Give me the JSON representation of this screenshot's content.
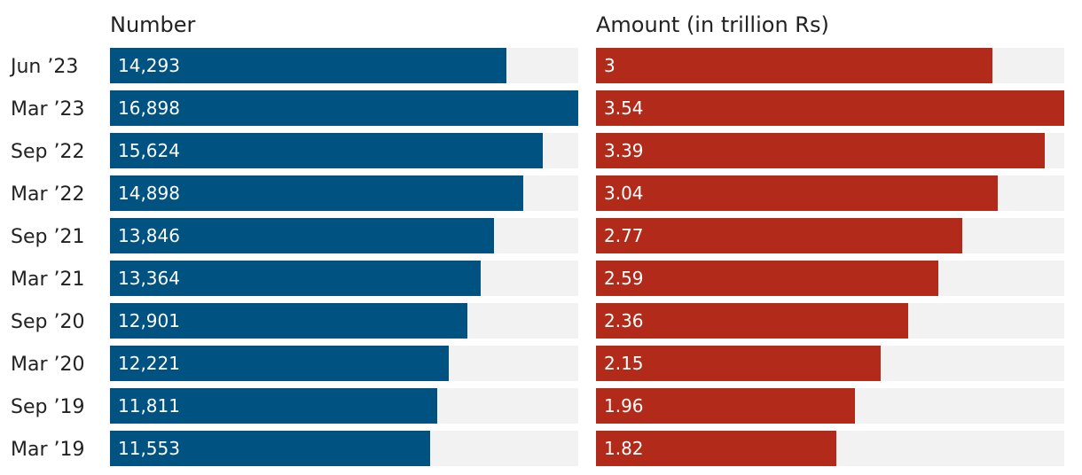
{
  "chart_data": [
    {
      "type": "bar",
      "orientation": "horizontal",
      "title": "Number",
      "categories": [
        "Jun ’23",
        "Mar ’23",
        "Sep ’22",
        "Mar ’22",
        "Sep ’21",
        "Mar ’21",
        "Sep ’20",
        "Mar ’20",
        "Sep ’19",
        "Mar ’19"
      ],
      "values": [
        14293,
        16898,
        15624,
        14898,
        13846,
        13364,
        12901,
        12221,
        11811,
        11553
      ],
      "value_labels": [
        "14,293",
        "16,898",
        "15,624",
        "14,898",
        "13,846",
        "13,364",
        "12,901",
        "12,221",
        "11,811",
        "11,553"
      ],
      "xlim": [
        0,
        16898
      ],
      "color": "#005281",
      "track_color": "#f2f2f2",
      "grid": false
    },
    {
      "type": "bar",
      "orientation": "horizontal",
      "title": "Amount (in trillion Rs)",
      "categories": [
        "Jun ’23",
        "Mar ’23",
        "Sep ’22",
        "Mar ’22",
        "Sep ’21",
        "Mar ’21",
        "Sep ’20",
        "Mar ’20",
        "Sep ’19",
        "Mar ’19"
      ],
      "values": [
        3,
        3.54,
        3.39,
        3.04,
        2.77,
        2.59,
        2.36,
        2.15,
        1.96,
        1.82
      ],
      "value_labels": [
        "3",
        "3.54",
        "3.39",
        "3.04",
        "2.77",
        "2.59",
        "2.36",
        "2.15",
        "1.96",
        "1.82"
      ],
      "xlim": [
        0,
        3.54
      ],
      "color": "#b12a1a",
      "track_color": "#f2f2f2",
      "grid": false
    }
  ]
}
